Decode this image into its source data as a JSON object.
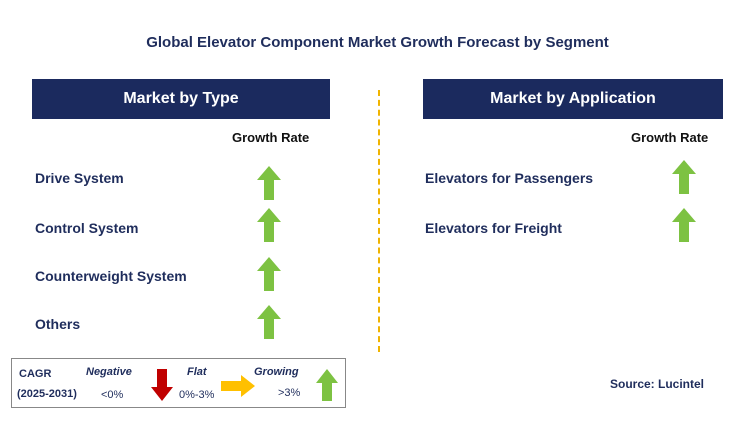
{
  "title": "Global Elevator Component Market Growth Forecast by Segment",
  "left_panel": {
    "header": "Market by Type",
    "growth_rate_label": "Growth Rate",
    "items": [
      {
        "label": "Drive System",
        "trend": "growing"
      },
      {
        "label": "Control System",
        "trend": "growing"
      },
      {
        "label": "Counterweight System",
        "trend": "growing"
      },
      {
        "label": "Others",
        "trend": "growing"
      }
    ]
  },
  "right_panel": {
    "header": "Market by Application",
    "growth_rate_label": "Growth Rate",
    "items": [
      {
        "label": "Elevators for Passengers",
        "trend": "growing"
      },
      {
        "label": "Elevators for Freight",
        "trend": "growing"
      }
    ]
  },
  "legend": {
    "cagr_label": "CAGR",
    "period": "(2025-2031)",
    "negative_label": "Negative",
    "negative_range": "<0%",
    "flat_label": "Flat",
    "flat_range": "0%-3%",
    "growing_label": "Growing",
    "growing_range": ">3%"
  },
  "source": "Source: Lucintel",
  "colors": {
    "header_bg": "#1b2a5e",
    "text": "#1f2d5c",
    "growing": "#7dc242",
    "negative": "#c00000",
    "flat": "#ffc000",
    "divider": "#f0b400"
  },
  "chart_data": {
    "type": "table",
    "title": "Global Elevator Component Market Growth Forecast by Segment",
    "segments": [
      {
        "segment": "Market by Type",
        "rows": [
          {
            "name": "Drive System",
            "growth": "Growing (>3%)"
          },
          {
            "name": "Control System",
            "growth": "Growing (>3%)"
          },
          {
            "name": "Counterweight System",
            "growth": "Growing (>3%)"
          },
          {
            "name": "Others",
            "growth": "Growing (>3%)"
          }
        ]
      },
      {
        "segment": "Market by Application",
        "rows": [
          {
            "name": "Elevators for Passengers",
            "growth": "Growing (>3%)"
          },
          {
            "name": "Elevators for Freight",
            "growth": "Growing (>3%)"
          }
        ]
      }
    ]
  }
}
